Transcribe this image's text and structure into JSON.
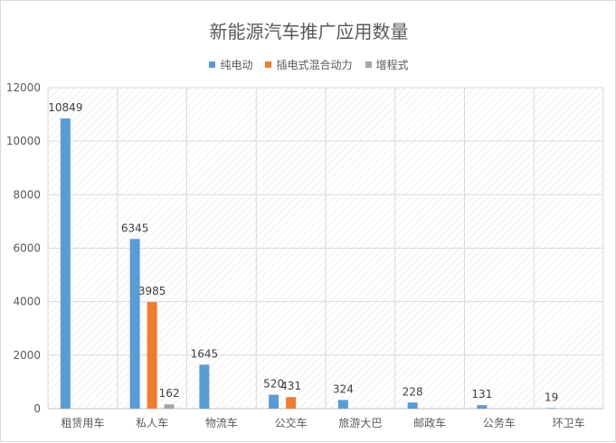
{
  "chart_data": {
    "type": "bar",
    "title": "新能源汽车推广应用数量",
    "categories": [
      "租赁用车",
      "私人车",
      "物流车",
      "公交车",
      "旅游大巴",
      "邮政车",
      "公务车",
      "环卫车"
    ],
    "series": [
      {
        "name": "纯电动",
        "color": "#5b9bd5",
        "values": [
          10849,
          6345,
          1645,
          520,
          324,
          228,
          131,
          19
        ]
      },
      {
        "name": "插电式混合动力",
        "color": "#ed7d31",
        "values": [
          null,
          3985,
          null,
          431,
          null,
          null,
          null,
          null
        ]
      },
      {
        "name": "增程式",
        "color": "#a5a5a5",
        "values": [
          null,
          162,
          null,
          null,
          null,
          null,
          null,
          null
        ]
      }
    ],
    "ylim": [
      0,
      12000
    ],
    "yticks": [
      0,
      2000,
      4000,
      6000,
      8000,
      10000,
      12000
    ],
    "grid": true,
    "legend_position": "top",
    "data_labels": true
  }
}
